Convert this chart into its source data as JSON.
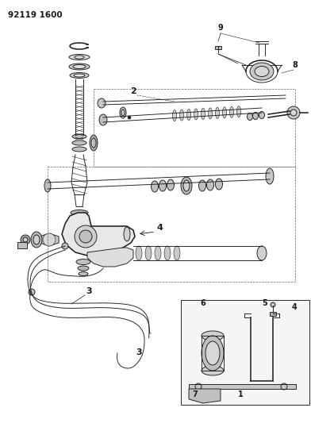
{
  "title_code": "92119 1600",
  "bg_color": "#ffffff",
  "fg_color": "#1a1a1a",
  "fig_width": 3.92,
  "fig_height": 5.33,
  "dpi": 100,
  "lw": 0.65,
  "lw_thick": 1.1,
  "lw_thin": 0.4
}
